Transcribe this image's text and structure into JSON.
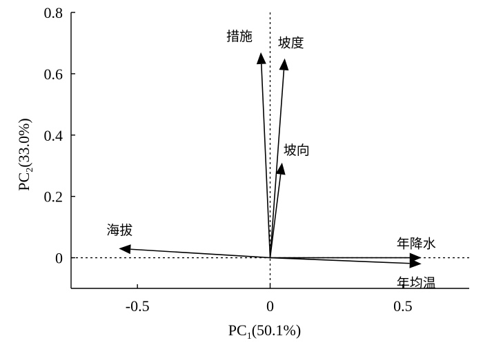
{
  "chart_data": {
    "type": "biplot",
    "xlabel": {
      "main": "PC",
      "sub": "1",
      "rest": "(50.1%)"
    },
    "ylabel": {
      "main": "PC",
      "sub": "2",
      "rest": "(33.0%)"
    },
    "xlim": [
      -0.75,
      0.75
    ],
    "ylim": [
      -0.1,
      0.8
    ],
    "xticks": [
      -0.5,
      0,
      0.5
    ],
    "xtick_labels": [
      "-0.5",
      "0",
      "0.5"
    ],
    "yticks": [
      0,
      0.2,
      0.4,
      0.6,
      0.8
    ],
    "ytick_labels": [
      "0",
      "0.2",
      "0.4",
      "0.6",
      "0.8"
    ],
    "zero_lines": true,
    "vectors": [
      {
        "name": "措施",
        "x": -0.035,
        "y": 0.67
      },
      {
        "name": "坡度",
        "x": 0.055,
        "y": 0.65
      },
      {
        "name": "坡向",
        "x": 0.045,
        "y": 0.31
      },
      {
        "name": "海拔",
        "x": -0.57,
        "y": 0.03
      },
      {
        "name": "年降水",
        "x": 0.57,
        "y": 0.0
      },
      {
        "name": "年均温",
        "x": 0.57,
        "y": -0.02
      }
    ]
  }
}
